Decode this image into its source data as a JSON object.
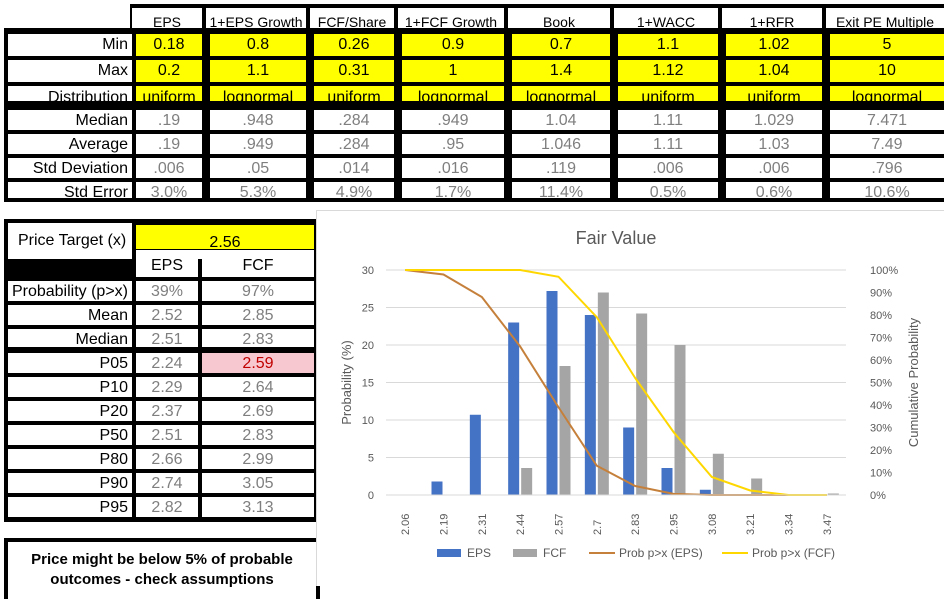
{
  "top_table": {
    "headers": [
      "EPS",
      "1+EPS Growth",
      "FCF/Share",
      "1+FCF Growth",
      "Book",
      "1+WACC",
      "1+RFR",
      "Exit PE Multiple"
    ],
    "rows_input": [
      {
        "label": "Min",
        "values": [
          "0.18",
          "0.8",
          "0.26",
          "0.9",
          "0.7",
          "1.1",
          "1.02",
          "5"
        ]
      },
      {
        "label": "Max",
        "values": [
          "0.2",
          "1.1",
          "0.31",
          "1",
          "1.4",
          "1.12",
          "1.04",
          "10"
        ]
      },
      {
        "label": "Distribution",
        "values": [
          "uniform",
          "lognormal",
          "uniform",
          "lognormal",
          "lognormal",
          "uniform",
          "uniform",
          "lognormal"
        ]
      }
    ],
    "rows_stats": [
      {
        "label": "Median",
        "values": [
          ".19",
          ".948",
          ".284",
          ".949",
          "1.04",
          "1.11",
          "1.029",
          "7.471"
        ]
      },
      {
        "label": "Average",
        "values": [
          ".19",
          ".949",
          ".284",
          ".95",
          "1.046",
          "1.11",
          "1.03",
          "7.49"
        ]
      },
      {
        "label": "Std Deviation",
        "values": [
          ".006",
          ".05",
          ".014",
          ".016",
          ".119",
          ".006",
          ".006",
          ".796"
        ]
      },
      {
        "label": "Std Error",
        "values": [
          "3.0%",
          "5.3%",
          "4.9%",
          "1.7%",
          "11.4%",
          "0.5%",
          "0.6%",
          "10.6%"
        ]
      }
    ]
  },
  "price_table": {
    "target_label": "Price Target (x)",
    "target_value": "2.56",
    "col_headers": [
      "EPS",
      "FCF"
    ],
    "rows": [
      {
        "label": "Probability (p>x)",
        "eps": "39%",
        "fcf": "97%"
      },
      {
        "label": "Mean",
        "eps": "2.52",
        "fcf": "2.85"
      },
      {
        "label": "Median",
        "eps": "2.51",
        "fcf": "2.83"
      },
      {
        "label": "P05",
        "eps": "2.24",
        "fcf": "2.59"
      },
      {
        "label": "P10",
        "eps": "2.29",
        "fcf": "2.64"
      },
      {
        "label": "P20",
        "eps": "2.37",
        "fcf": "2.69"
      },
      {
        "label": "P50",
        "eps": "2.51",
        "fcf": "2.83"
      },
      {
        "label": "P80",
        "eps": "2.66",
        "fcf": "2.99"
      },
      {
        "label": "P90",
        "eps": "2.74",
        "fcf": "3.05"
      },
      {
        "label": "P95",
        "eps": "2.82",
        "fcf": "3.13"
      }
    ],
    "highlight_color": "#f8c8d0"
  },
  "warning": "Price might be below 5% of probable outcomes - check assumptions",
  "colors": {
    "eps": "#4472c4",
    "fcf": "#a5a5a5",
    "prob_eps": "#c5803c",
    "prob_fcf": "#ffd700"
  },
  "chart_data": {
    "type": "bar",
    "title": "Fair Value",
    "ylabel": "Probability (%)",
    "y2label": "Cumulative Probability",
    "categories": [
      "2.06",
      "2.19",
      "2.31",
      "2.44",
      "2.57",
      "2.7",
      "2.83",
      "2.95",
      "3.08",
      "3.21",
      "3.34",
      "3.47"
    ],
    "ylim": [
      0,
      30
    ],
    "yticks": [
      0,
      5,
      10,
      15,
      20,
      25,
      30
    ],
    "y2ticks": [
      "0%",
      "10%",
      "20%",
      "30%",
      "40%",
      "50%",
      "60%",
      "70%",
      "80%",
      "90%",
      "100%"
    ],
    "series": [
      {
        "name": "EPS",
        "kind": "bar",
        "values": [
          0,
          1.8,
          10.7,
          23,
          27.2,
          24,
          9,
          3.6,
          0.7,
          0,
          0,
          0
        ]
      },
      {
        "name": "FCF",
        "kind": "bar",
        "values": [
          0,
          0,
          0,
          3.6,
          17.2,
          27,
          24.2,
          20,
          5.5,
          2.2,
          0,
          0.2
        ]
      },
      {
        "name": "Prob p>x (EPS)",
        "kind": "line",
        "axis": "right",
        "values": [
          1.0,
          0.98,
          0.88,
          0.66,
          0.39,
          0.13,
          0.04,
          0.005,
          0,
          0,
          0,
          0
        ]
      },
      {
        "name": "Prob p>x (FCF)",
        "kind": "line",
        "axis": "right",
        "values": [
          1.0,
          1.0,
          1.0,
          1.0,
          0.97,
          0.79,
          0.52,
          0.28,
          0.08,
          0.02,
          0,
          0
        ]
      }
    ],
    "legend_position": "bottom",
    "grid": true
  }
}
